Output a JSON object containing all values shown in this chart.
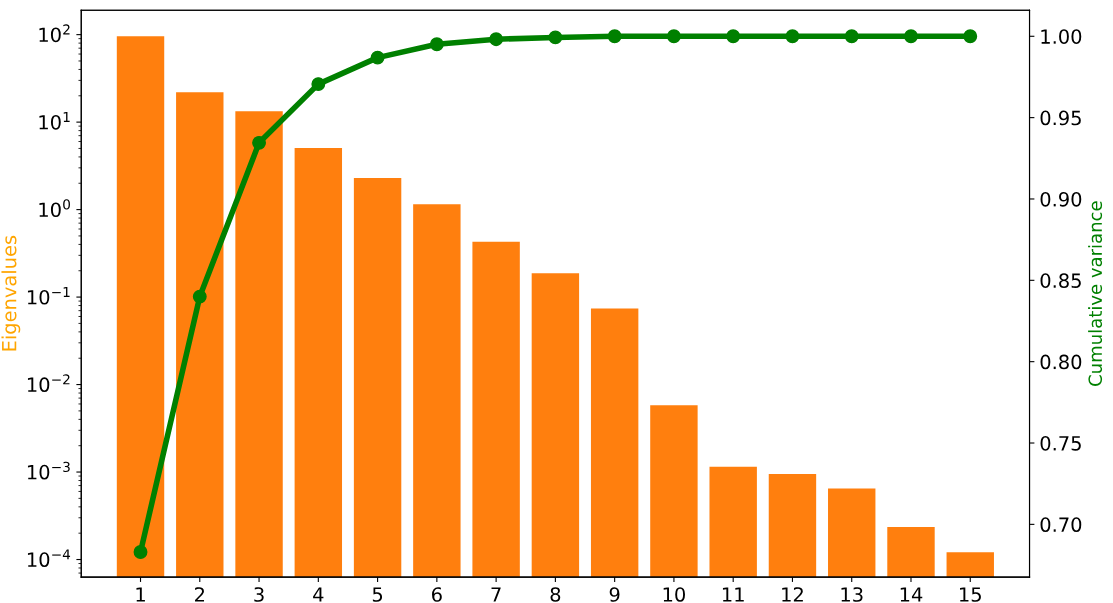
{
  "chart_data": {
    "type": "bar",
    "categories": [
      "1",
      "2",
      "3",
      "4",
      "5",
      "6",
      "7",
      "8",
      "9",
      "10",
      "11",
      "12",
      "13",
      "14",
      "15"
    ],
    "ylabel": "Eigenvalues",
    "y2label": "Cumulative variance",
    "log": "y",
    "ylim": [
      6.3e-05,
      190
    ],
    "yticks": [
      {
        "value": 0.0001,
        "label": "10$^{−4}$"
      },
      {
        "value": 0.001,
        "label": "10$^{−3}$"
      },
      {
        "value": 0.01,
        "label": "10$^{−2}$"
      },
      {
        "value": 0.1,
        "label": "10$^{−1}$"
      },
      {
        "value": 1,
        "label": "10$^{0}$"
      },
      {
        "value": 10,
        "label": "10$^{1}$"
      },
      {
        "value": 100,
        "label": "10$^{2}$"
      }
    ],
    "y2lim": [
      0.6676,
      1.016
    ],
    "y2ticks": [
      {
        "value": 0.7,
        "label": "0.70"
      },
      {
        "value": 0.75,
        "label": "0.75"
      },
      {
        "value": 0.8,
        "label": "0.80"
      },
      {
        "value": 0.85,
        "label": "0.85"
      },
      {
        "value": 0.9,
        "label": "0.90"
      },
      {
        "value": 0.95,
        "label": "0.95"
      },
      {
        "value": 1.0,
        "label": "1.00"
      }
    ],
    "grid": false,
    "legend": false,
    "series": [
      {
        "color": "#ff7f0e",
        "values": [
          96,
          21.9,
          13.3,
          5.07,
          2.29,
          1.15,
          0.43,
          0.187,
          0.074,
          0.0058,
          0.00115,
          0.00095,
          0.00065,
          0.000235,
          0.000121
        ]
      },
      {
        "type": "line",
        "axis": "y2",
        "color": "#008000",
        "marker": "circle",
        "line_style": "solid",
        "values": [
          0.683,
          0.84,
          0.9345,
          0.9706,
          0.9869,
          0.9951,
          0.9982,
          0.9993,
          1.0,
          1.0,
          1.0,
          1.0,
          1.0,
          1.0,
          1.0
        ]
      }
    ]
  }
}
